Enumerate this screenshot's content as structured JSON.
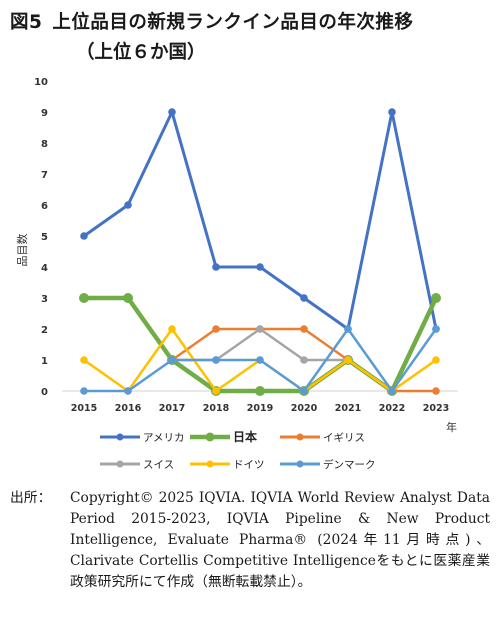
{
  "figure_label": "図5",
  "title": "上位品目の新規ランクイン品目の年次推移",
  "subtitle": "（上位６か国）",
  "source_label": "出所：",
  "source_text": "Copyright© 2025 IQVIA. IQVIA World Review Analyst Data Period 2015-2023, IQVIA Pipeline & New Product Intelligence, Evaluate Pharma® (2024年11月時点)、Clarivate Cortellis Competitive Intelligenceをもとに医薬産業政策研究所にて作成（無断転載禁止）。",
  "chart_data": {
    "type": "line",
    "ylabel": "品目数",
    "xlabel": "年",
    "ylim": [
      0,
      10
    ],
    "yticks": [
      0,
      1,
      2,
      3,
      4,
      5,
      6,
      7,
      8,
      9,
      10
    ],
    "grid": false,
    "legend_position": "bottom",
    "x": [
      "2015",
      "2016",
      "2017",
      "2018",
      "2019",
      "2020",
      "2021",
      "2022",
      "2023"
    ],
    "series": [
      {
        "name": "アメリカ",
        "color": "#4472c4",
        "width": 3,
        "bold_label": false,
        "values": [
          5,
          6,
          9,
          4,
          4,
          3,
          2,
          9,
          2
        ]
      },
      {
        "name": "日本",
        "color": "#70ad47",
        "width": 4.5,
        "bold_label": true,
        "values": [
          3,
          3,
          1,
          0,
          0,
          0,
          1,
          0,
          3
        ]
      },
      {
        "name": "イギリス",
        "color": "#ed7d31",
        "width": 2.5,
        "bold_label": false,
        "values": [
          null,
          null,
          1,
          2,
          2,
          2,
          1,
          0,
          0
        ]
      },
      {
        "name": "スイス",
        "color": "#a5a5a5",
        "width": 2.5,
        "bold_label": false,
        "values": [
          null,
          null,
          1,
          1,
          2,
          1,
          1,
          0,
          null
        ]
      },
      {
        "name": "ドイツ",
        "color": "#ffc000",
        "width": 2.5,
        "bold_label": false,
        "values": [
          1,
          0,
          2,
          0,
          1,
          0,
          1,
          0,
          1
        ]
      },
      {
        "name": "デンマーク",
        "color": "#5b9bd5",
        "width": 2.5,
        "bold_label": false,
        "values": [
          0,
          0,
          1,
          1,
          1,
          0,
          2,
          0,
          2
        ]
      }
    ]
  }
}
